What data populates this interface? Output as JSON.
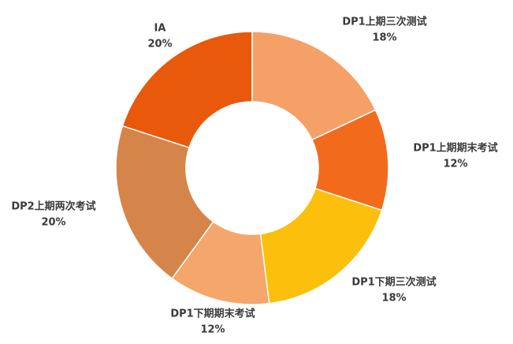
{
  "chart_data": {
    "type": "donut",
    "categories": [
      "DP1上期三次测试",
      "DP1上期期末考试",
      "DP1下期三次测试",
      "DP1下期期末考试",
      "DP2上期两次考试",
      "IA"
    ],
    "values": [
      18,
      12,
      18,
      12,
      20,
      20
    ],
    "value_labels": [
      "18%",
      "12%",
      "18%",
      "12%",
      "20%",
      "20%"
    ],
    "colors": [
      "#f4a067",
      "#f26b1d",
      "#fbbf0c",
      "#f4a66b",
      "#d5854a",
      "#e8590c"
    ]
  }
}
